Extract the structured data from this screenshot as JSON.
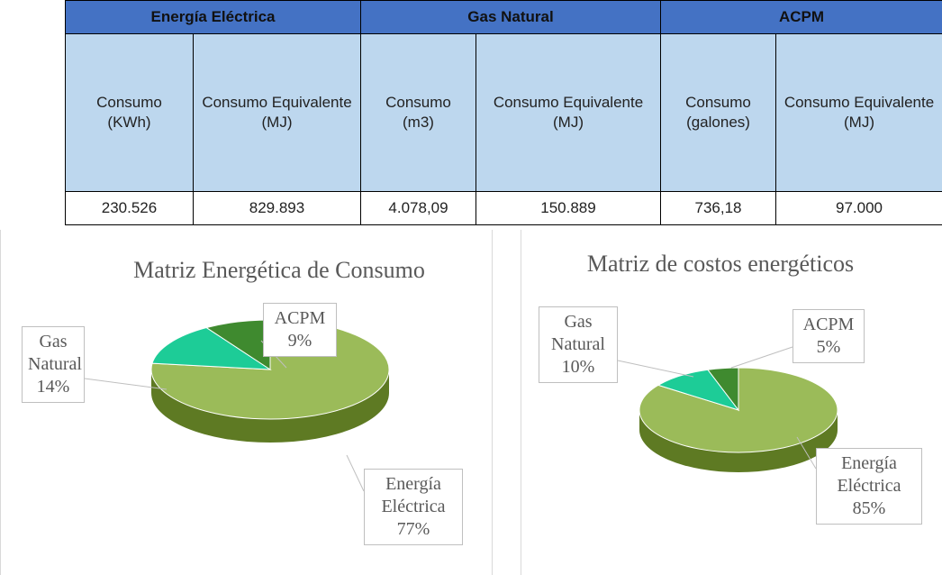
{
  "table": {
    "groups": [
      "Energía Eléctrica",
      "Gas Natural",
      "ACPM"
    ],
    "columns": [
      "Consumo (KWh)",
      "Consumo Equivalente (MJ)",
      "Consumo (m3)",
      "Consumo Equivalente (MJ)",
      "Consumo (galones)",
      "Consumo Equivalente (MJ)"
    ],
    "rows": [
      [
        "230.526",
        "829.893",
        "4.078,09",
        "150.889",
        "736,18",
        "97.000"
      ]
    ]
  },
  "chart_data": [
    {
      "type": "pie",
      "title": "Matriz Energética de Consumo",
      "categories": [
        "Energía Eléctrica",
        "Gas Natural",
        "ACPM"
      ],
      "values": [
        77,
        14,
        9
      ],
      "value_labels": [
        "77%",
        "14%",
        "9%"
      ],
      "colors": [
        "#9bbb59",
        "#1dcc97",
        "#3f8a2f"
      ]
    },
    {
      "type": "pie",
      "title": "Matriz de costos energéticos",
      "categories": [
        "Energía Eléctrica",
        "Gas Natural",
        "ACPM"
      ],
      "values": [
        85,
        10,
        5
      ],
      "value_labels": [
        "85%",
        "10%",
        "5%"
      ],
      "colors": [
        "#9bbb59",
        "#1dcc97",
        "#3f8a2f"
      ]
    }
  ]
}
